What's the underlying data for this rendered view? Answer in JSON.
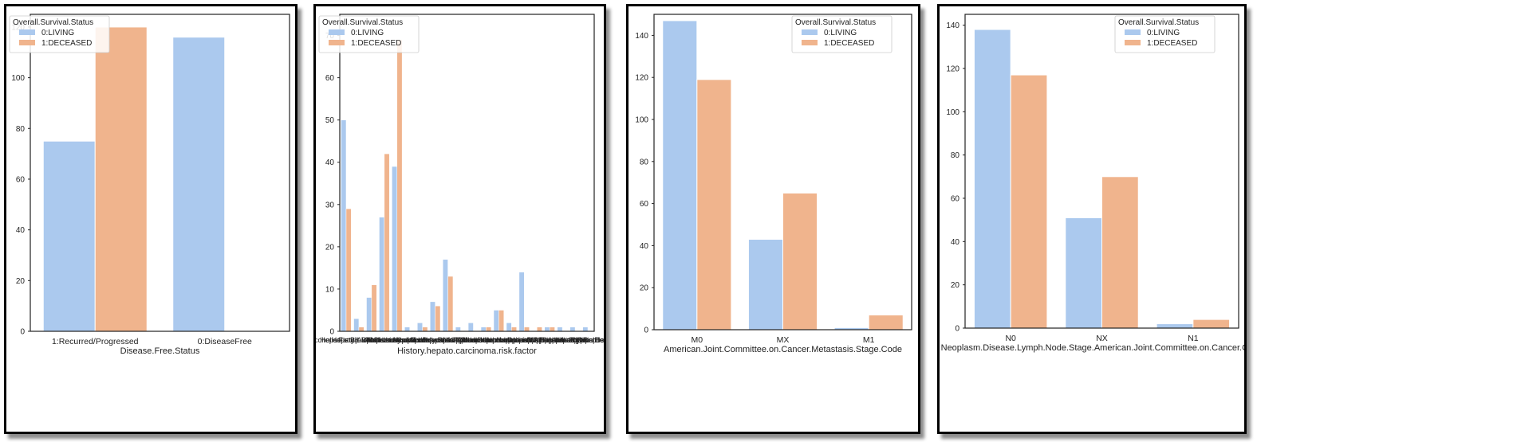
{
  "colors": {
    "living": "#abc9ee",
    "deceased": "#f0b48d",
    "frame": "#222222"
  },
  "charts": [
    {
      "type": "bar",
      "xlabel": "Disease.Free.Status",
      "ylabel": "",
      "ylim": [
        0,
        125
      ],
      "yticks": [
        0,
        20,
        40,
        60,
        80,
        100,
        120
      ],
      "legend": {
        "title": "Overall.Survival.Status",
        "placement": "top-left",
        "labels": [
          "0:LIVING",
          "1:DECEASED"
        ]
      },
      "categories": [
        "1:Recurred/Progressed",
        "0:DiseaseFree"
      ],
      "series": [
        {
          "name": "0:LIVING",
          "values": [
            75,
            116
          ]
        },
        {
          "name": "1:DECEASED",
          "values": [
            120,
            0
          ]
        }
      ]
    },
    {
      "type": "bar",
      "xlabel": "History.hepato.carcinoma.risk.factor",
      "ylabel": "",
      "ylim": [
        0,
        75
      ],
      "yticks": [
        0,
        10,
        20,
        30,
        40,
        50,
        60,
        70
      ],
      "legend": {
        "title": "Overall.Survival.Status",
        "placement": "top-left",
        "labels": [
          "0:LIVING",
          "1:DECEASED"
        ]
      },
      "categories": [
        "Non-Alcoholic Fatty Liver Disease",
        "Hepatitis B|Other",
        "Hepatitis B|Alcohol consumption",
        "Hepatitis C",
        "Alcohol consumption",
        "Hepatitis B",
        "No History of Primary Risk Factors",
        "Alcohol consumption|Other",
        "Hepatitis C|Other",
        "Alcohol consumption|Hepatitis C",
        "Hepatitis C|Hemochromatosis",
        "Other",
        "Hemochromatosis",
        "Alcohol consumption|Hepatitis B|Hepatitis C",
        "Alcohol consumption|Hemochromatosis",
        "Alcohol consumption|Hepatitis B",
        "Hepatitis B|Hepatitis C|Other",
        "Hepatitis C|Alpha-1 Antitrypsin Deficiency",
        "Hepatitis B|Hepatitis C",
        "Alcohol consumption|Hepatitis C|Other"
      ],
      "series": [
        {
          "name": "0:LIVING",
          "values": [
            50,
            3,
            8,
            27,
            39,
            1,
            2,
            7,
            17,
            1,
            2,
            1,
            5,
            2,
            14,
            0,
            1,
            1,
            1,
            1
          ]
        },
        {
          "name": "1:DECEASED",
          "values": [
            29,
            1,
            11,
            42,
            69,
            0,
            1,
            6,
            13,
            0,
            0,
            1,
            5,
            1,
            1,
            1,
            1,
            0,
            0,
            0
          ]
        }
      ]
    },
    {
      "type": "bar",
      "xlabel": "American.Joint.Committee.on.Cancer.Metastasis.Stage.Code",
      "ylabel": "",
      "ylim": [
        0,
        150
      ],
      "yticks": [
        0,
        20,
        40,
        60,
        80,
        100,
        120,
        140
      ],
      "legend": {
        "title": "Overall.Survival.Status",
        "placement": "top-right",
        "labels": [
          "0:LIVING",
          "1:DECEASED"
        ]
      },
      "categories": [
        "M0",
        "MX",
        "M1"
      ],
      "series": [
        {
          "name": "0:LIVING",
          "values": [
            147,
            43,
            1
          ]
        },
        {
          "name": "1:DECEASED",
          "values": [
            119,
            65,
            7
          ]
        }
      ]
    },
    {
      "type": "bar",
      "xlabel": "Neoplasm.Disease.Lymph.Node.Stage.American.Joint.Committee.on.Cancer.Code",
      "ylabel": "",
      "ylim": [
        0,
        145
      ],
      "yticks": [
        0,
        20,
        40,
        60,
        80,
        100,
        120,
        140
      ],
      "legend": {
        "title": "Overall.Survival.Status",
        "placement": "top-right",
        "labels": [
          "0:LIVING",
          "1:DECEASED"
        ]
      },
      "categories": [
        "N0",
        "NX",
        "N1"
      ],
      "series": [
        {
          "name": "0:LIVING",
          "values": [
            138,
            51,
            2
          ]
        },
        {
          "name": "1:DECEASED",
          "values": [
            117,
            70,
            4
          ]
        }
      ]
    }
  ]
}
